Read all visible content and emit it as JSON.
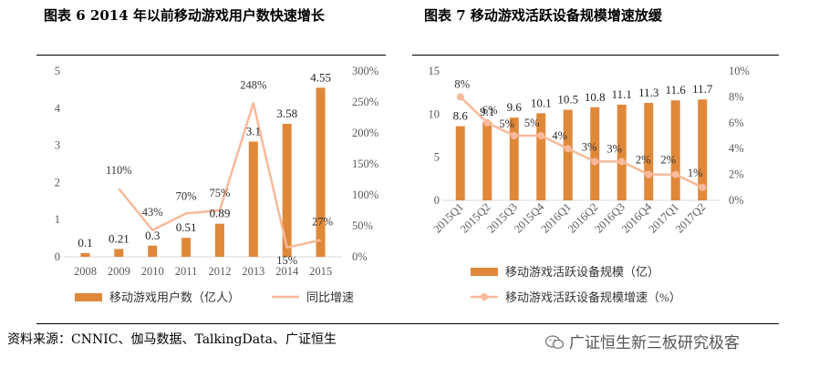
{
  "chart_data": [
    {
      "type": "bar",
      "title": "图表 6 2014 年以前移动游戏用户数快速增长",
      "categories": [
        "2008",
        "2009",
        "2010",
        "2011",
        "2012",
        "2013",
        "2014",
        "2015"
      ],
      "series": [
        {
          "name": "移动游戏用户数（亿人）",
          "kind": "bar",
          "axis": "left",
          "values": [
            0.1,
            0.21,
            0.3,
            0.51,
            0.89,
            3.1,
            3.58,
            4.55
          ],
          "labels": [
            "0.1",
            "0.21",
            "0.3",
            "0.51",
            "0.89",
            "3.1",
            "3.58",
            "4.55"
          ]
        },
        {
          "name": "同比增速",
          "kind": "line",
          "axis": "right",
          "values": [
            null,
            110,
            43,
            70,
            75,
            248,
            15,
            27
          ],
          "labels": [
            "",
            "110%",
            "43%",
            "70%",
            "75%",
            "248%",
            "15%",
            "27%"
          ]
        }
      ],
      "y_left": {
        "min": 0,
        "max": 5,
        "ticks": [
          "0",
          "1",
          "2",
          "3",
          "4",
          "5"
        ]
      },
      "y_right": {
        "min": 0,
        "max": 300,
        "ticks": [
          "0%",
          "50%",
          "100%",
          "150%",
          "200%",
          "250%",
          "300%"
        ]
      },
      "legend": [
        "移动游戏用户数（亿人）",
        "同比增速"
      ]
    },
    {
      "type": "bar",
      "title": "图表 7 移动游戏活跃设备规模增速放缓",
      "categories": [
        "2015Q1",
        "2015Q2",
        "2015Q3",
        "2015Q4",
        "2016Q1",
        "2016Q2",
        "2016Q3",
        "2016Q4",
        "2017Q1",
        "2017Q2"
      ],
      "series": [
        {
          "name": "移动游戏活跃设备规模（亿）",
          "kind": "bar",
          "axis": "left",
          "values": [
            8.6,
            9.1,
            9.6,
            10.1,
            10.5,
            10.8,
            11.1,
            11.3,
            11.6,
            11.7
          ],
          "labels": [
            "8.6",
            "9.1",
            "9.6",
            "10.1",
            "10.5",
            "10.8",
            "11.1",
            "11.3",
            "11.6",
            "11.7"
          ]
        },
        {
          "name": "移动游戏活跃设备规模增速（%）",
          "kind": "line",
          "axis": "right",
          "values": [
            8,
            6,
            5,
            5,
            4,
            3,
            3,
            2,
            2,
            1
          ],
          "labels": [
            "8%",
            "6%",
            "5%",
            "5%",
            "4%",
            "3%",
            "3%",
            "2%",
            "2%",
            "1%"
          ]
        }
      ],
      "y_left": {
        "min": 0,
        "max": 15,
        "ticks": [
          "0",
          "5",
          "10",
          "15"
        ]
      },
      "y_right": {
        "min": 0,
        "max": 10,
        "ticks": [
          "0%",
          "2%",
          "4%",
          "6%",
          "8%",
          "10%"
        ]
      },
      "legend": [
        "移动游戏活跃设备规模（亿）",
        "移动游戏活跃设备规模增速（%）"
      ]
    }
  ],
  "colors": {
    "bar": "#E0883A",
    "line": "#F9B99A",
    "axis_text": "#595959",
    "grid": "#d9d9d9"
  },
  "footer": {
    "source": "资料来源：CNNIC、伽马数据、TalkingData、广证恒生",
    "watermark": "广证恒生新三板研究极客",
    "watermark_icon": "wechat-icon"
  }
}
